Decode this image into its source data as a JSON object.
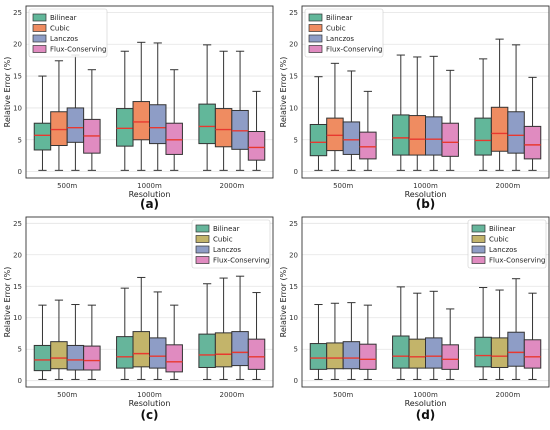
{
  "panels": [
    {
      "id": "a",
      "label": "(a)",
      "ylabel": "Relative Error (%)",
      "xlabel": "Resolution",
      "categories": [
        "500m",
        "1000m",
        "2000m"
      ],
      "series": [
        {
          "name": "Bilinear",
          "color": "#62b79a"
        },
        {
          "name": "Cubic",
          "color": "#ef8c61"
        },
        {
          "name": "Lanczos",
          "color": "#8e9dc6"
        },
        {
          "name": "Flux-Conserving",
          "color": "#e08bc0"
        }
      ],
      "legend_position": "top-left",
      "boxes": [
        [
          {
            "whislo": 0.2,
            "q1": 3.4,
            "med": 5.7,
            "q3": 7.6,
            "whishi": 15.0
          },
          {
            "whislo": 0.2,
            "q1": 4.1,
            "med": 6.6,
            "q3": 9.4,
            "whishi": 17.4
          },
          {
            "whislo": 0.2,
            "q1": 4.6,
            "med": 6.9,
            "q3": 10.0,
            "whishi": 18.3
          },
          {
            "whislo": 0.2,
            "q1": 2.9,
            "med": 5.6,
            "q3": 8.2,
            "whishi": 16.0
          }
        ],
        [
          {
            "whislo": 0.2,
            "q1": 4.0,
            "med": 6.8,
            "q3": 9.9,
            "whishi": 18.9
          },
          {
            "whislo": 0.2,
            "q1": 5.0,
            "med": 7.8,
            "q3": 11.0,
            "whishi": 20.3
          },
          {
            "whislo": 0.2,
            "q1": 4.4,
            "med": 6.9,
            "q3": 10.5,
            "whishi": 20.2
          },
          {
            "whislo": 0.2,
            "q1": 2.7,
            "med": 5.0,
            "q3": 7.6,
            "whishi": 16.0
          }
        ],
        [
          {
            "whislo": 0.2,
            "q1": 4.4,
            "med": 7.1,
            "q3": 10.6,
            "whishi": 19.9
          },
          {
            "whislo": 0.2,
            "q1": 3.9,
            "med": 6.6,
            "q3": 9.9,
            "whishi": 18.9
          },
          {
            "whislo": 0.2,
            "q1": 3.5,
            "med": 6.4,
            "q3": 9.6,
            "whishi": 18.9
          },
          {
            "whislo": 0.2,
            "q1": 1.8,
            "med": 3.8,
            "q3": 6.3,
            "whishi": 12.6
          }
        ]
      ]
    },
    {
      "id": "b",
      "label": "(b)",
      "ylabel": "Relative Error (%)",
      "xlabel": "Resolution",
      "categories": [
        "500m",
        "1000m",
        "2000m"
      ],
      "series": [
        {
          "name": "Bilinear",
          "color": "#62b79a"
        },
        {
          "name": "Cubic",
          "color": "#ef8c61"
        },
        {
          "name": "Lanczos",
          "color": "#8e9dc6"
        },
        {
          "name": "Flux-Conserving",
          "color": "#e08bc0"
        }
      ],
      "legend_position": "top-left",
      "boxes": [
        [
          {
            "whislo": 0.2,
            "q1": 2.5,
            "med": 4.6,
            "q3": 7.4,
            "whishi": 14.9
          },
          {
            "whislo": 0.2,
            "q1": 3.3,
            "med": 5.7,
            "q3": 8.4,
            "whishi": 17.0
          },
          {
            "whislo": 0.2,
            "q1": 2.7,
            "med": 5.0,
            "q3": 7.8,
            "whishi": 15.8
          },
          {
            "whislo": 0.2,
            "q1": 2.0,
            "med": 3.9,
            "q3": 6.2,
            "whishi": 12.6
          }
        ],
        [
          {
            "whislo": 0.2,
            "q1": 2.6,
            "med": 5.3,
            "q3": 8.9,
            "whishi": 18.3
          },
          {
            "whislo": 0.2,
            "q1": 2.6,
            "med": 5.1,
            "q3": 8.8,
            "whishi": 18.0
          },
          {
            "whislo": 0.2,
            "q1": 2.6,
            "med": 5.1,
            "q3": 8.6,
            "whishi": 18.1
          },
          {
            "whislo": 0.2,
            "q1": 2.4,
            "med": 4.6,
            "q3": 7.6,
            "whishi": 15.9
          }
        ],
        [
          {
            "whislo": 0.2,
            "q1": 2.6,
            "med": 4.9,
            "q3": 8.4,
            "whishi": 17.7
          },
          {
            "whislo": 0.2,
            "q1": 3.2,
            "med": 6.0,
            "q3": 10.1,
            "whishi": 20.8
          },
          {
            "whislo": 0.2,
            "q1": 2.9,
            "med": 5.7,
            "q3": 9.4,
            "whishi": 19.9
          },
          {
            "whislo": 0.2,
            "q1": 2.0,
            "med": 4.2,
            "q3": 7.1,
            "whishi": 14.8
          }
        ]
      ]
    },
    {
      "id": "c",
      "label": "(c)",
      "ylabel": "Relative Error (%)",
      "xlabel": "Resolution",
      "categories": [
        "500m",
        "1000m",
        "2000m"
      ],
      "series": [
        {
          "name": "Bilinear",
          "color": "#66b59b"
        },
        {
          "name": "Cubic",
          "color": "#c3b46a"
        },
        {
          "name": "Lanczos",
          "color": "#8e9dc6"
        },
        {
          "name": "Flux-Conserving",
          "color": "#e08bc0"
        }
      ],
      "legend_position": "top-right",
      "boxes": [
        [
          {
            "whislo": 0.2,
            "q1": 1.6,
            "med": 3.3,
            "q3": 5.6,
            "whishi": 12.0
          },
          {
            "whislo": 0.2,
            "q1": 1.9,
            "med": 3.6,
            "q3": 6.2,
            "whishi": 12.8
          },
          {
            "whislo": 0.2,
            "q1": 1.7,
            "med": 3.3,
            "q3": 5.6,
            "whishi": 12.1
          },
          {
            "whislo": 0.2,
            "q1": 1.7,
            "med": 3.2,
            "q3": 5.5,
            "whishi": 12.0
          }
        ],
        [
          {
            "whislo": 0.2,
            "q1": 2.0,
            "med": 3.8,
            "q3": 7.0,
            "whishi": 14.7
          },
          {
            "whislo": 0.2,
            "q1": 2.2,
            "med": 4.3,
            "q3": 7.8,
            "whishi": 16.4
          },
          {
            "whislo": 0.2,
            "q1": 2.0,
            "med": 3.9,
            "q3": 6.8,
            "whishi": 14.1
          },
          {
            "whislo": 0.2,
            "q1": 1.4,
            "med": 3.0,
            "q3": 5.7,
            "whishi": 12.0
          }
        ],
        [
          {
            "whislo": 0.2,
            "q1": 2.1,
            "med": 4.1,
            "q3": 7.4,
            "whishi": 15.4
          },
          {
            "whislo": 0.2,
            "q1": 2.2,
            "med": 4.2,
            "q3": 7.6,
            "whishi": 16.3
          },
          {
            "whislo": 0.2,
            "q1": 2.4,
            "med": 4.5,
            "q3": 7.8,
            "whishi": 16.6
          },
          {
            "whislo": 0.2,
            "q1": 1.8,
            "med": 3.8,
            "q3": 6.6,
            "whishi": 14.0
          }
        ]
      ]
    },
    {
      "id": "d",
      "label": "(d)",
      "ylabel": "Relative Error (%)",
      "xlabel": "Resolution",
      "categories": [
        "500m",
        "1000m",
        "2000m"
      ],
      "series": [
        {
          "name": "Bilinear",
          "color": "#66b59b"
        },
        {
          "name": "Cubic",
          "color": "#c3b46a"
        },
        {
          "name": "Lanczos",
          "color": "#8e9dc6"
        },
        {
          "name": "Flux-Conserving",
          "color": "#e08bc0"
        }
      ],
      "legend_position": "top-right",
      "boxes": [
        [
          {
            "whislo": 0.2,
            "q1": 1.8,
            "med": 3.6,
            "q3": 5.9,
            "whishi": 12.1
          },
          {
            "whislo": 0.2,
            "q1": 1.9,
            "med": 3.6,
            "q3": 6.0,
            "whishi": 12.3
          },
          {
            "whislo": 0.2,
            "q1": 1.9,
            "med": 3.6,
            "q3": 6.2,
            "whishi": 12.4
          },
          {
            "whislo": 0.2,
            "q1": 1.8,
            "med": 3.4,
            "q3": 5.8,
            "whishi": 12.0
          }
        ],
        [
          {
            "whislo": 0.2,
            "q1": 2.0,
            "med": 3.9,
            "q3": 7.1,
            "whishi": 14.9
          },
          {
            "whislo": 0.2,
            "q1": 2.0,
            "med": 3.8,
            "q3": 6.6,
            "whishi": 13.9
          },
          {
            "whislo": 0.2,
            "q1": 2.0,
            "med": 3.9,
            "q3": 6.8,
            "whishi": 14.2
          },
          {
            "whislo": 0.2,
            "q1": 1.8,
            "med": 3.4,
            "q3": 5.7,
            "whishi": 11.4
          }
        ],
        [
          {
            "whislo": 0.2,
            "q1": 2.2,
            "med": 4.0,
            "q3": 6.9,
            "whishi": 14.8
          },
          {
            "whislo": 0.2,
            "q1": 2.1,
            "med": 3.9,
            "q3": 6.8,
            "whishi": 14.4
          },
          {
            "whislo": 0.2,
            "q1": 2.3,
            "med": 4.5,
            "q3": 7.7,
            "whishi": 16.2
          },
          {
            "whislo": 0.2,
            "q1": 2.0,
            "med": 3.8,
            "q3": 6.5,
            "whishi": 13.9
          }
        ]
      ]
    }
  ],
  "chart_data": [
    {
      "type": "box",
      "title": "",
      "panel": "(a)",
      "xlabel": "Resolution",
      "ylabel": "Relative Error (%)",
      "ylim": [
        -1,
        26
      ],
      "yticks": [
        0,
        5,
        10,
        15,
        20,
        25
      ],
      "categories": [
        "500m",
        "1000m",
        "2000m"
      ],
      "series": [
        "Bilinear",
        "Cubic",
        "Lanczos",
        "Flux-Conserving"
      ],
      "grid": true,
      "legend": "top-left",
      "medians": [
        [
          5.7,
          6.6,
          6.9,
          5.6
        ],
        [
          6.8,
          7.8,
          6.9,
          5.0
        ],
        [
          7.1,
          6.6,
          6.4,
          3.8
        ]
      ]
    },
    {
      "type": "box",
      "title": "",
      "panel": "(b)",
      "xlabel": "Resolution",
      "ylabel": "Relative Error (%)",
      "ylim": [
        -1,
        26
      ],
      "yticks": [
        0,
        5,
        10,
        15,
        20,
        25
      ],
      "categories": [
        "500m",
        "1000m",
        "2000m"
      ],
      "series": [
        "Bilinear",
        "Cubic",
        "Lanczos",
        "Flux-Conserving"
      ],
      "grid": true,
      "legend": "top-left",
      "medians": [
        [
          4.6,
          5.7,
          5.0,
          3.9
        ],
        [
          5.3,
          5.1,
          5.1,
          4.6
        ],
        [
          4.9,
          6.0,
          5.7,
          4.2
        ]
      ]
    },
    {
      "type": "box",
      "title": "",
      "panel": "(c)",
      "xlabel": "Resolution",
      "ylabel": "Relative Error (%)",
      "ylim": [
        -1,
        26
      ],
      "yticks": [
        0,
        5,
        10,
        15,
        20,
        25
      ],
      "categories": [
        "500m",
        "1000m",
        "2000m"
      ],
      "series": [
        "Bilinear",
        "Cubic",
        "Lanczos",
        "Flux-Conserving"
      ],
      "grid": true,
      "legend": "top-right",
      "medians": [
        [
          3.3,
          3.6,
          3.3,
          3.2
        ],
        [
          3.8,
          4.3,
          3.9,
          3.0
        ],
        [
          4.1,
          4.2,
          4.5,
          3.8
        ]
      ]
    },
    {
      "type": "box",
      "title": "",
      "panel": "(d)",
      "xlabel": "Resolution",
      "ylabel": "Relative Error (%)",
      "ylim": [
        -1,
        26
      ],
      "yticks": [
        0,
        5,
        10,
        15,
        20,
        25
      ],
      "categories": [
        "500m",
        "1000m",
        "2000m"
      ],
      "series": [
        "Bilinear",
        "Cubic",
        "Lanczos",
        "Flux-Conserving"
      ],
      "grid": true,
      "legend": "top-right",
      "medians": [
        [
          3.6,
          3.6,
          3.6,
          3.4
        ],
        [
          3.9,
          3.8,
          3.9,
          3.4
        ],
        [
          4.0,
          3.9,
          4.5,
          3.8
        ]
      ]
    }
  ],
  "y_axis": {
    "min": -1,
    "max": 26,
    "ticks": [
      0,
      5,
      10,
      15,
      20,
      25
    ]
  },
  "median_color": "#e8382f"
}
